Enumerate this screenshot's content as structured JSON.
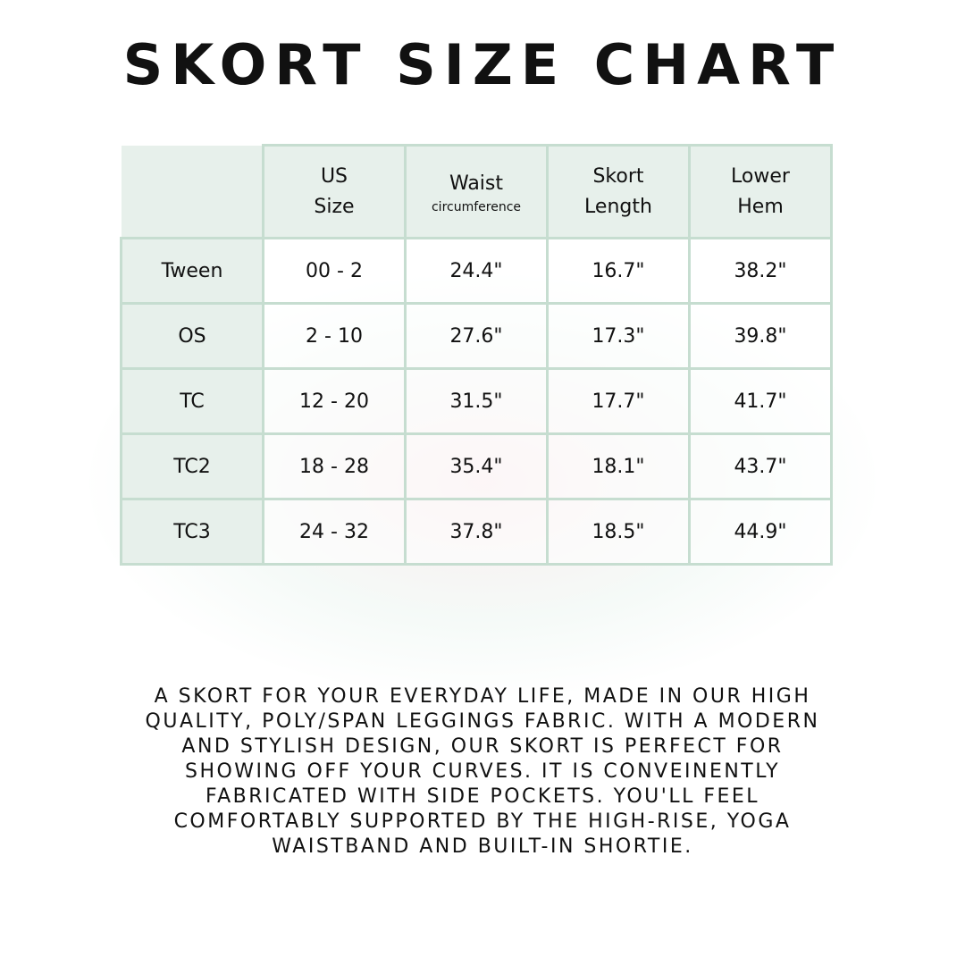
{
  "title": "SKORT SIZE CHART",
  "table": {
    "headers": [
      {
        "line1": "US",
        "line2": "Size",
        "sub": ""
      },
      {
        "line1": "Waist",
        "line2": "",
        "sub": "circumference"
      },
      {
        "line1": "Skort",
        "line2": "Length",
        "sub": ""
      },
      {
        "line1": "Lower",
        "line2": "Hem",
        "sub": ""
      }
    ],
    "rows": [
      {
        "label": "Tween",
        "us_size": "00 - 2",
        "waist": "24.4\"",
        "length": "16.7\"",
        "hem": "38.2\""
      },
      {
        "label": "OS",
        "us_size": "2 - 10",
        "waist": "27.6\"",
        "length": "17.3\"",
        "hem": "39.8\""
      },
      {
        "label": "TC",
        "us_size": "12 - 20",
        "waist": "31.5\"",
        "length": "17.7\"",
        "hem": "41.7\""
      },
      {
        "label": "TC2",
        "us_size": "18 - 28",
        "waist": "35.4\"",
        "length": "18.1\"",
        "hem": "43.7\""
      },
      {
        "label": "TC3",
        "us_size": "24 - 32",
        "waist": "37.8\"",
        "length": "18.5\"",
        "hem": "44.9\""
      }
    ]
  },
  "description": [
    "A skort for your everyday life, made in our high",
    "quality, poly/span leggings fabric. With a modern",
    "and stylish design, our skort is perfect for",
    "showing off your curves. It is conveinently",
    "fabricated with side pockets. You'll feel",
    "comfortably supported by the high-rise, yoga",
    "waistband and built-in shortie."
  ],
  "colors": {
    "header_bg": "#e7f0eb",
    "border": "#c6ddd0"
  }
}
